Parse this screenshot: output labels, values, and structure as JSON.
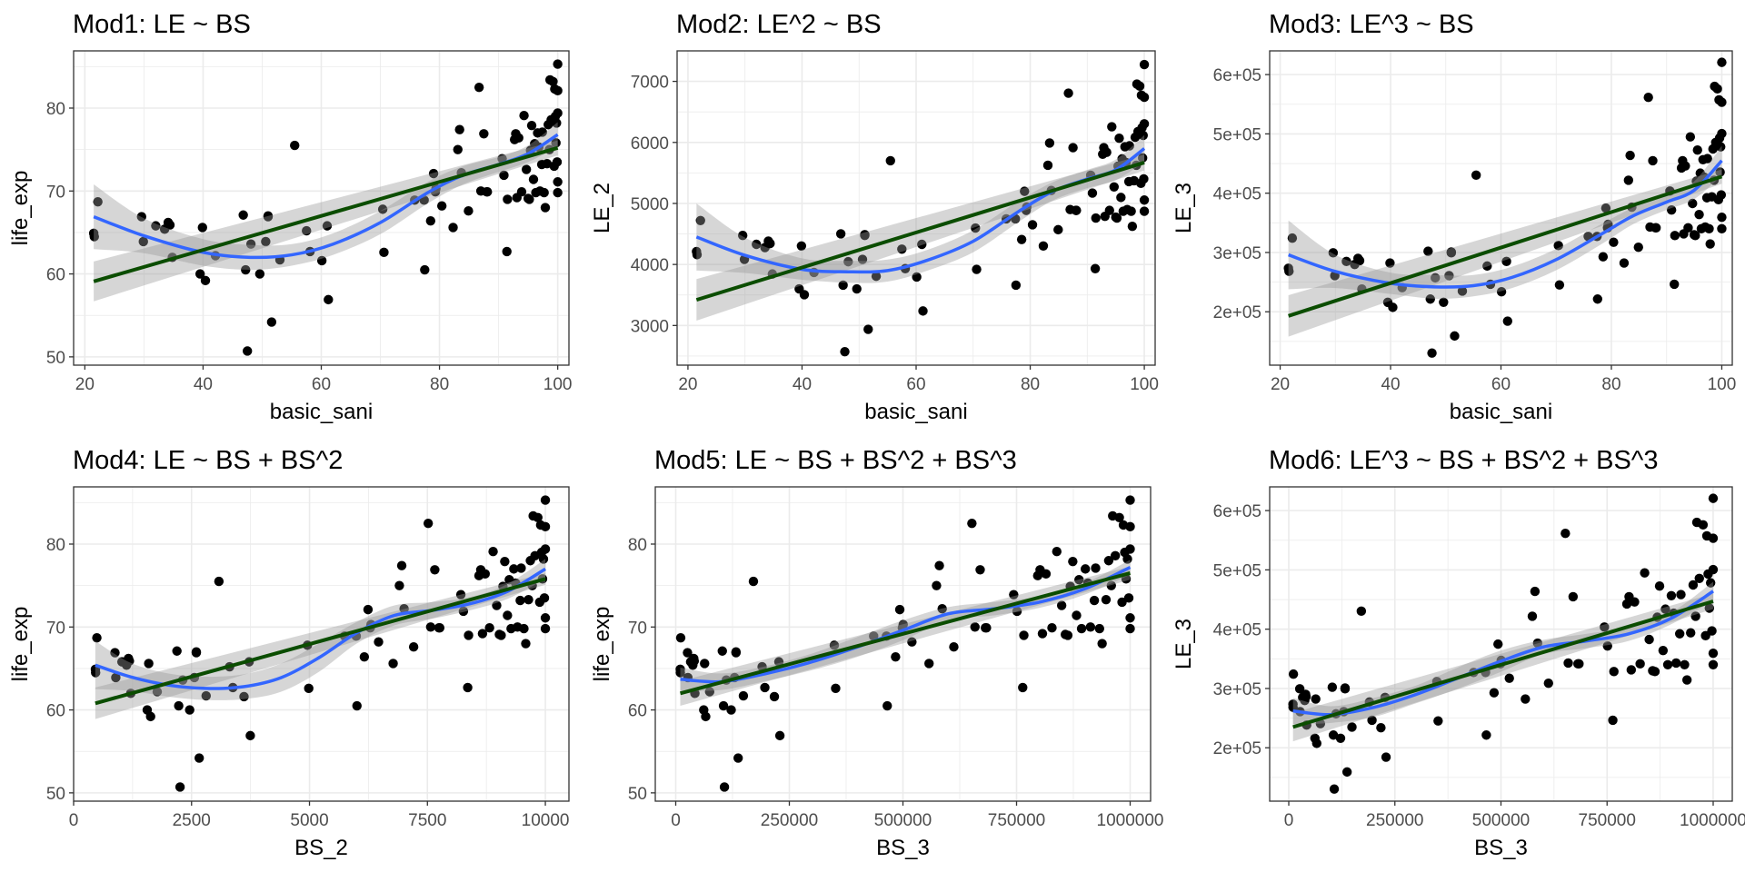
{
  "figure": {
    "layout": "2 rows x 3 columns",
    "colors": {
      "points": "#000000",
      "loess_line": "#3366FF",
      "lm_line": "#0B4D00",
      "confidence_band": "#999999"
    }
  },
  "observations_note": "Shared observations (basic_sani, life_exp); other panels plot transforms LE_2=life_exp^2, LE_3=life_exp^3, BS_2=basic_sani^2, BS_3=basic_sani^3",
  "chart_data": [
    {
      "id": "mod1",
      "type": "scatter",
      "title": "Mod1: LE ~ BS",
      "xlabel": "basic_sani",
      "ylabel": "life_exp",
      "x_var": "BS",
      "y_var": "LE",
      "xlim": [
        18.1,
        101.9
      ],
      "ylim": [
        49.0,
        86.9
      ],
      "xticks": [
        20,
        40,
        60,
        80,
        100
      ],
      "xtick_labels": [
        "20",
        "40",
        "60",
        "80",
        "100"
      ],
      "yticks": [
        50,
        60,
        70,
        80
      ],
      "ytick_labels": [
        "50",
        "60",
        "70",
        "80"
      ],
      "grid": true,
      "overlays": [
        {
          "name": "loess fit",
          "color": "#3366FF",
          "x": [
            21.5,
            30,
            40,
            48,
            55,
            62,
            70,
            78,
            84,
            90,
            95,
            100
          ],
          "y": [
            66.9,
            64.6,
            62.6,
            62.0,
            62.3,
            63.6,
            66.2,
            69.8,
            71.9,
            73.2,
            74.5,
            76.8
          ],
          "ci_low": [
            63.0,
            62.5,
            61.0,
            60.5,
            61.0,
            62.3,
            64.8,
            68.5,
            70.8,
            72.3,
            73.5,
            75.3
          ],
          "ci_high": [
            70.8,
            66.7,
            64.2,
            63.5,
            63.6,
            64.9,
            67.6,
            71.1,
            73.0,
            74.1,
            75.5,
            78.3
          ]
        },
        {
          "name": "linear fit",
          "color": "#0B4D00",
          "x": [
            21.5,
            100
          ],
          "y": [
            59.1,
            75.2
          ],
          "ci_low": [
            56.7,
            74.3
          ],
          "ci_high": [
            61.5,
            76.1
          ]
        }
      ]
    },
    {
      "id": "mod2",
      "type": "scatter",
      "title": "Mod2: LE^2 ~ BS",
      "xlabel": "basic_sani",
      "ylabel": "LE_2",
      "x_var": "BS",
      "y_var": "LE2",
      "xlim": [
        18.1,
        101.9
      ],
      "ylim": [
        2350,
        7500
      ],
      "xticks": [
        20,
        40,
        60,
        80,
        100
      ],
      "xtick_labels": [
        "20",
        "40",
        "60",
        "80",
        "100"
      ],
      "yticks": [
        3000,
        4000,
        5000,
        6000,
        7000
      ],
      "ytick_labels": [
        "3000",
        "4000",
        "5000",
        "6000",
        "7000"
      ],
      "grid": true,
      "overlays": [
        {
          "name": "loess fit",
          "color": "#3366FF",
          "x": [
            21.5,
            30,
            40,
            48,
            55,
            62,
            70,
            78,
            84,
            90,
            95,
            100
          ],
          "y": [
            4450,
            4150,
            3920,
            3880,
            3900,
            4070,
            4380,
            4870,
            5200,
            5400,
            5550,
            5900
          ],
          "ci_low": [
            3900,
            3860,
            3750,
            3700,
            3720,
            3900,
            4200,
            4700,
            5050,
            5250,
            5380,
            5680
          ],
          "ci_high": [
            5000,
            4440,
            4100,
            4060,
            4080,
            4240,
            4560,
            5040,
            5350,
            5550,
            5720,
            6120
          ]
        },
        {
          "name": "linear fit",
          "color": "#0B4D00",
          "x": [
            21.5,
            100
          ],
          "y": [
            3420,
            5670
          ],
          "ci_low": [
            3080,
            5540
          ],
          "ci_high": [
            3760,
            5800
          ]
        }
      ]
    },
    {
      "id": "mod3",
      "type": "scatter",
      "title": "Mod3: LE^3 ~ BS",
      "xlabel": "basic_sani",
      "ylabel": "LE_3",
      "x_var": "BS",
      "y_var": "LE3",
      "xlim": [
        18.1,
        101.9
      ],
      "ylim": [
        110000,
        640000
      ],
      "xticks": [
        20,
        40,
        60,
        80,
        100
      ],
      "xtick_labels": [
        "20",
        "40",
        "60",
        "80",
        "100"
      ],
      "yticks": [
        200000,
        300000,
        400000,
        500000,
        600000
      ],
      "ytick_labels": [
        "2e+05",
        "3e+05",
        "4e+05",
        "5e+05",
        "6e+05"
      ],
      "grid": true,
      "overlays": [
        {
          "name": "loess fit",
          "color": "#3366FF",
          "x": [
            21.5,
            30,
            40,
            48,
            55,
            62,
            70,
            78,
            84,
            90,
            95,
            100
          ],
          "y": [
            296000,
            268000,
            248000,
            242000,
            244000,
            258000,
            288000,
            330000,
            362000,
            385000,
            405000,
            455000
          ],
          "ci_low": [
            238000,
            240000,
            230000,
            222000,
            226000,
            240000,
            270000,
            313000,
            348000,
            372000,
            390000,
            430000
          ],
          "ci_high": [
            354000,
            296000,
            266000,
            262000,
            262000,
            276000,
            306000,
            347000,
            376000,
            398000,
            420000,
            480000
          ]
        },
        {
          "name": "linear fit",
          "color": "#0B4D00",
          "x": [
            21.5,
            100
          ],
          "y": [
            193000,
            428000
          ],
          "ci_low": [
            158000,
            416000
          ],
          "ci_high": [
            228000,
            440000
          ]
        }
      ]
    },
    {
      "id": "mod4",
      "type": "scatter",
      "title": "Mod4: LE ~ BS + BS^2",
      "xlabel": "BS_2",
      "ylabel": "life_exp",
      "x_var": "BS2",
      "y_var": "LE",
      "xlim": [
        0,
        10500
      ],
      "ylim": [
        49.0,
        86.9
      ],
      "xticks": [
        0,
        2500,
        5000,
        7500,
        10000
      ],
      "xtick_labels": [
        "0",
        "2500",
        "5000",
        "7500",
        "10000"
      ],
      "yticks": [
        50,
        60,
        70,
        80
      ],
      "ytick_labels": [
        "50",
        "60",
        "70",
        "80"
      ],
      "grid": true,
      "overlays": [
        {
          "name": "loess fit",
          "color": "#3366FF",
          "x": [
            460,
            1200,
            2000,
            2800,
            3600,
            4400,
            5200,
            6000,
            6800,
            7600,
            8400,
            9200,
            10000
          ],
          "y": [
            65.4,
            64.0,
            63.0,
            62.6,
            62.8,
            63.9,
            66.3,
            69.3,
            71.4,
            72.0,
            72.8,
            74.3,
            77.0
          ],
          "ci_low": [
            62.5,
            62.3,
            61.6,
            61.2,
            61.3,
            62.2,
            64.6,
            68.0,
            70.2,
            71.0,
            72.0,
            73.4,
            75.8
          ],
          "ci_high": [
            68.3,
            65.7,
            64.4,
            64.0,
            64.3,
            65.6,
            68.0,
            70.6,
            72.6,
            73.0,
            73.6,
            75.2,
            78.2
          ]
        },
        {
          "name": "linear fit",
          "color": "#0B4D00",
          "x": [
            460,
            10000
          ],
          "y": [
            60.8,
            75.8
          ],
          "ci_low": [
            58.9,
            75.1
          ],
          "ci_high": [
            62.7,
            76.5
          ]
        }
      ]
    },
    {
      "id": "mod5",
      "type": "scatter",
      "title": "Mod5: LE ~ BS + BS^2 + BS^3",
      "xlabel": "BS_3",
      "ylabel": "life_exp",
      "x_var": "BS3",
      "y_var": "LE",
      "xlim": [
        -45000,
        1045000
      ],
      "ylim": [
        49.0,
        86.9
      ],
      "xticks": [
        0,
        250000,
        500000,
        750000,
        1000000
      ],
      "xtick_labels": [
        "0",
        "250000",
        "500000",
        "750000",
        "1000000"
      ],
      "yticks": [
        50,
        60,
        70,
        80
      ],
      "ytick_labels": [
        "50",
        "60",
        "70",
        "80"
      ],
      "grid": true,
      "overlays": [
        {
          "name": "loess fit",
          "color": "#3366FF",
          "x": [
            10000,
            100000,
            200000,
            300000,
            400000,
            500000,
            600000,
            700000,
            800000,
            900000,
            1000000
          ],
          "y": [
            63.7,
            63.4,
            64.4,
            65.8,
            67.6,
            69.6,
            71.6,
            72.2,
            73.0,
            74.6,
            77.2
          ],
          "ci_low": [
            62.3,
            62.4,
            63.5,
            64.8,
            66.4,
            68.4,
            70.8,
            71.4,
            72.3,
            73.9,
            76.3
          ],
          "ci_high": [
            65.1,
            64.4,
            65.3,
            66.8,
            68.8,
            70.8,
            72.4,
            73.0,
            73.7,
            75.3,
            78.1
          ]
        },
        {
          "name": "linear fit",
          "color": "#0B4D00",
          "x": [
            10000,
            1000000
          ],
          "y": [
            62.0,
            76.5
          ],
          "ci_low": [
            60.5,
            75.7
          ],
          "ci_high": [
            63.5,
            77.3
          ]
        }
      ]
    },
    {
      "id": "mod6",
      "type": "scatter",
      "title": "Mod6: LE^3 ~ BS + BS^2 + BS^3",
      "xlabel": "BS_3",
      "ylabel": "LE_3",
      "x_var": "BS3",
      "y_var": "LE3",
      "xlim": [
        -45000,
        1045000
      ],
      "ylim": [
        110000,
        640000
      ],
      "xticks": [
        0,
        250000,
        500000,
        750000,
        1000000
      ],
      "xtick_labels": [
        "0",
        "250000",
        "500000",
        "750000",
        "1000000"
      ],
      "yticks": [
        200000,
        300000,
        400000,
        500000,
        600000
      ],
      "ytick_labels": [
        "2e+05",
        "3e+05",
        "4e+05",
        "5e+05",
        "6e+05"
      ],
      "grid": true,
      "overlays": [
        {
          "name": "loess fit",
          "color": "#3366FF",
          "x": [
            10000,
            100000,
            200000,
            300000,
            400000,
            500000,
            600000,
            700000,
            800000,
            900000,
            1000000
          ],
          "y": [
            262000,
            256000,
            268000,
            290000,
            318000,
            346000,
            370000,
            380000,
            392000,
            418000,
            464000
          ],
          "ci_low": [
            240000,
            242000,
            252000,
            275000,
            300000,
            328000,
            358000,
            368000,
            380000,
            408000,
            448000
          ],
          "ci_high": [
            284000,
            270000,
            284000,
            305000,
            336000,
            364000,
            382000,
            392000,
            404000,
            428000,
            480000
          ]
        },
        {
          "name": "linear fit",
          "color": "#0B4D00",
          "x": [
            10000,
            1000000
          ],
          "y": [
            235000,
            447000
          ],
          "ci_low": [
            211000,
            434000
          ],
          "ci_high": [
            259000,
            460000
          ]
        }
      ]
    }
  ],
  "observations": {
    "basic_sani": [
      21.5,
      21.6,
      22.2,
      29.6,
      29.9,
      32.0,
      33.5,
      34.1,
      34.4,
      34.8,
      39.5,
      39.9,
      40.4,
      42.1,
      46.8,
      47.2,
      47.5,
      48.1,
      49.6,
      50.6,
      51.0,
      51.0,
      51.6,
      53.0,
      55.5,
      57.5,
      58.1,
      60.1,
      61.0,
      61.2,
      70.4,
      70.6,
      75.8,
      77.5,
      77.4,
      78.5,
      79.0,
      79.3,
      79.4,
      80.4,
      82.3,
      83.1,
      83.4,
      83.7,
      84.9,
      86.7,
      87.0,
      87.5,
      88.0,
      88.1,
      90.6,
      90.9,
      91.4,
      91.5,
      92.7,
      92.9,
      93.1,
      93.4,
      93.9,
      94.3,
      94.7,
      95.0,
      95.2,
      95.4,
      95.6,
      95.9,
      96.1,
      96.3,
      96.6,
      96.8,
      97.0,
      97.3,
      97.4,
      97.7,
      97.9,
      98.2,
      98.4,
      98.6,
      98.7,
      98.9,
      99.2,
      99.4,
      99.5,
      99.6,
      99.7,
      99.8,
      99.9,
      100.0,
      100.0,
      100.0,
      100.0,
      100.0
    ],
    "life_exp": [
      64.9,
      64.5,
      68.7,
      66.9,
      63.9,
      65.8,
      65.4,
      66.2,
      65.9,
      62.0,
      60.0,
      65.6,
      59.2,
      62.2,
      67.1,
      60.5,
      50.7,
      63.6,
      60.0,
      63.9,
      66.9,
      67.0,
      54.2,
      61.7,
      75.5,
      65.2,
      62.7,
      61.6,
      65.8,
      56.9,
      67.8,
      62.6,
      68.9,
      60.5,
      68.9,
      66.4,
      72.1,
      69.9,
      70.3,
      68.2,
      65.6,
      75.0,
      77.4,
      72.2,
      67.6,
      82.5,
      70.0,
      76.9,
      69.9,
      69.9,
      73.9,
      71.9,
      62.7,
      69.0,
      76.2,
      76.9,
      69.2,
      76.4,
      69.9,
      79.1,
      72.6,
      69.1,
      69.0,
      74.9,
      77.9,
      71.4,
      75.7,
      69.8,
      77.0,
      75.3,
      70.0,
      73.2,
      77.1,
      69.8,
      68.0,
      73.3,
      78.0,
      75.0,
      83.4,
      78.6,
      83.2,
      73.0,
      82.3,
      79.0,
      75.8,
      78.2,
      73.5,
      85.3,
      82.1,
      79.4,
      71.1,
      69.8
    ]
  }
}
